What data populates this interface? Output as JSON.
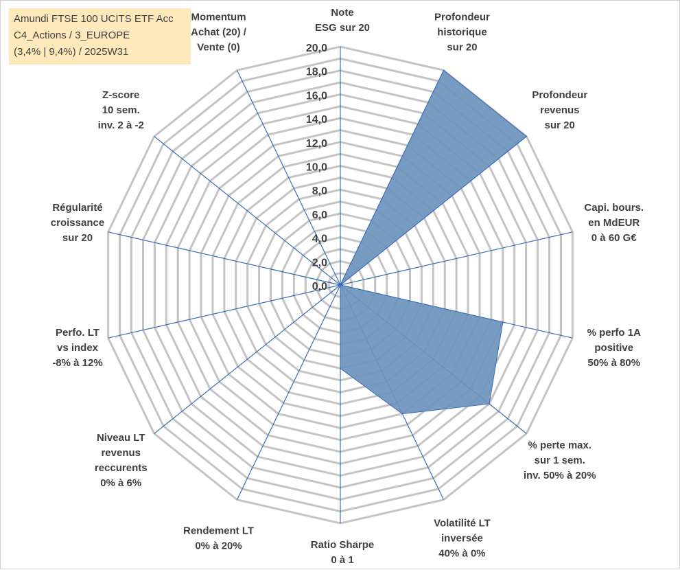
{
  "info_box": {
    "line1": "Amundi FTSE 100 UCITS ETF Acc",
    "line2": "C4_Actions / 3_EUROPE",
    "line3": "(3,4% | 9,4%) / 2025W31"
  },
  "chart_data": {
    "type": "radar",
    "title": "",
    "rmin": 0,
    "rmax": 20,
    "tick_step": 2,
    "minor_step": 1,
    "tick_labels": [
      "0,0",
      "2,0",
      "4,0",
      "6,0",
      "8,0",
      "10,0",
      "12,0",
      "14,0",
      "16,0",
      "18,0",
      "20,0"
    ],
    "grid": true,
    "legend": "none",
    "fill_color": "#6d93bd",
    "line_color": "#3a6db5",
    "grid_color": "#c4c4c4",
    "axes": [
      [
        "Note",
        "ESG sur 20"
      ],
      [
        "Profondeur",
        "historique",
        "sur 20"
      ],
      [
        "Profondeur",
        "revenus",
        "sur 20"
      ],
      [
        "Capi. bours.",
        "en MdEUR",
        "0 à 60 G€"
      ],
      [
        "% perfo 1A",
        "positive",
        "50% à 80%"
      ],
      [
        "% perte max.",
        "sur 1 sem.",
        "inv. 50% à 20%"
      ],
      [
        "Volatilité LT",
        "inversée",
        "40% à 0%"
      ],
      [
        "Ratio Sharpe",
        "0 à 1"
      ],
      [
        "Rendement LT",
        "0% à 20%"
      ],
      [
        "Niveau LT",
        "revenus",
        "reccurents",
        "0% à 6%"
      ],
      [
        "Perfo. LT",
        "vs index",
        "-8% à 12%"
      ],
      [
        "Régularité",
        "croissance",
        "sur 20"
      ],
      [
        "Z-score",
        "10 sem.",
        "inv. 2 à -2"
      ],
      [
        "Momentum",
        "Achat (20) /",
        "Vente (0)"
      ]
    ],
    "values": [
      0,
      20,
      20,
      0,
      14,
      16,
      12,
      7,
      0,
      0,
      0,
      6.4,
      0,
      0
    ]
  }
}
